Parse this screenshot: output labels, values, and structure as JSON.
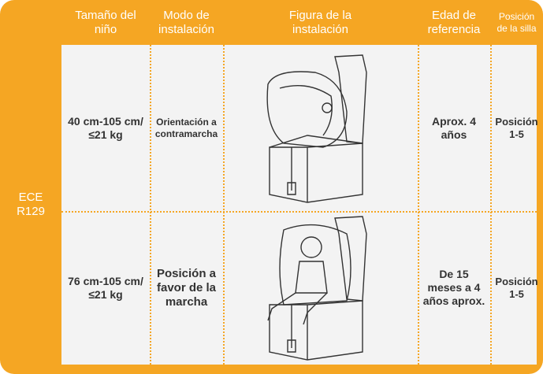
{
  "table": {
    "group_label": "ECE\nR129",
    "headers": [
      "Tamaño del\nniño",
      "Modo de\ninstalación",
      "Figura de la\ninstalación",
      "Edad de\nreferencia",
      "Posición\nde la silla"
    ],
    "rows": [
      [
        "40 cm-105 cm/\n≤21 kg",
        "Orientación a\ncontramarcha",
        "Aprox. 4\naños",
        "Posición\n1-5"
      ],
      [
        "76 cm-105 cm/\n≤21 kg",
        "Posición a\nfavor de la\nmarcha",
        "De 15\nmeses a 4\naños aprox.",
        "Posición\n1-5"
      ]
    ]
  }
}
